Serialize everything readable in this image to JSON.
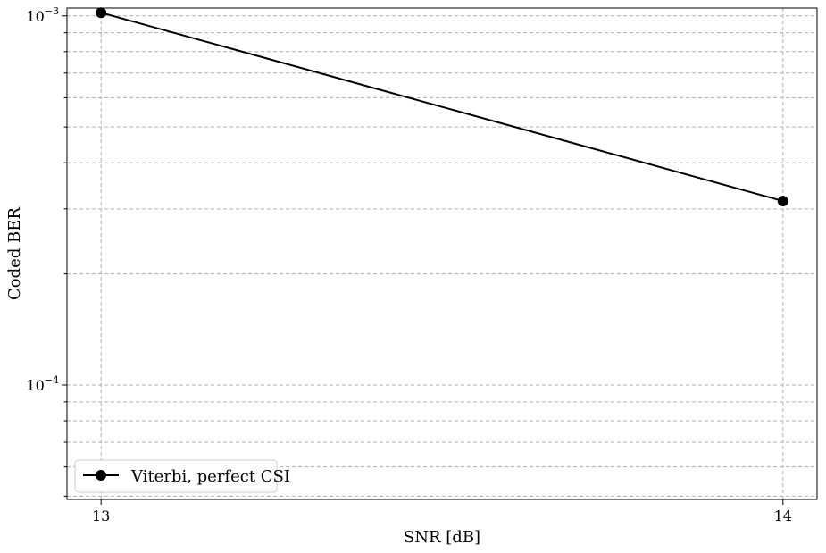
{
  "chart_data": {
    "type": "line",
    "xlabel": "SNR [dB]",
    "ylabel": "Coded BER",
    "yscale": "log",
    "xlim": [
      12.95,
      14.05
    ],
    "ylim": [
      4.9e-05,
      0.00105
    ],
    "xticks": [
      {
        "value": 13,
        "label": "13"
      },
      {
        "value": 14,
        "label": "14"
      }
    ],
    "yticks_major": [
      {
        "value": 0.0001,
        "base": "10",
        "exp": "−4"
      },
      {
        "value": 0.001,
        "base": "10",
        "exp": "−3"
      }
    ],
    "yticks_minor": [
      5e-05,
      6e-05,
      7e-05,
      8e-05,
      9e-05,
      0.0002,
      0.0003,
      0.0004,
      0.0005,
      0.0006,
      0.0007,
      0.0008,
      0.0009
    ],
    "grid": true,
    "legend_position": "lower-left",
    "series": [
      {
        "name": "Viterbi, perfect CSI",
        "color": "#000000",
        "marker": "circle",
        "x": [
          13,
          14
        ],
        "y": [
          0.00102,
          0.000315
        ]
      }
    ]
  }
}
